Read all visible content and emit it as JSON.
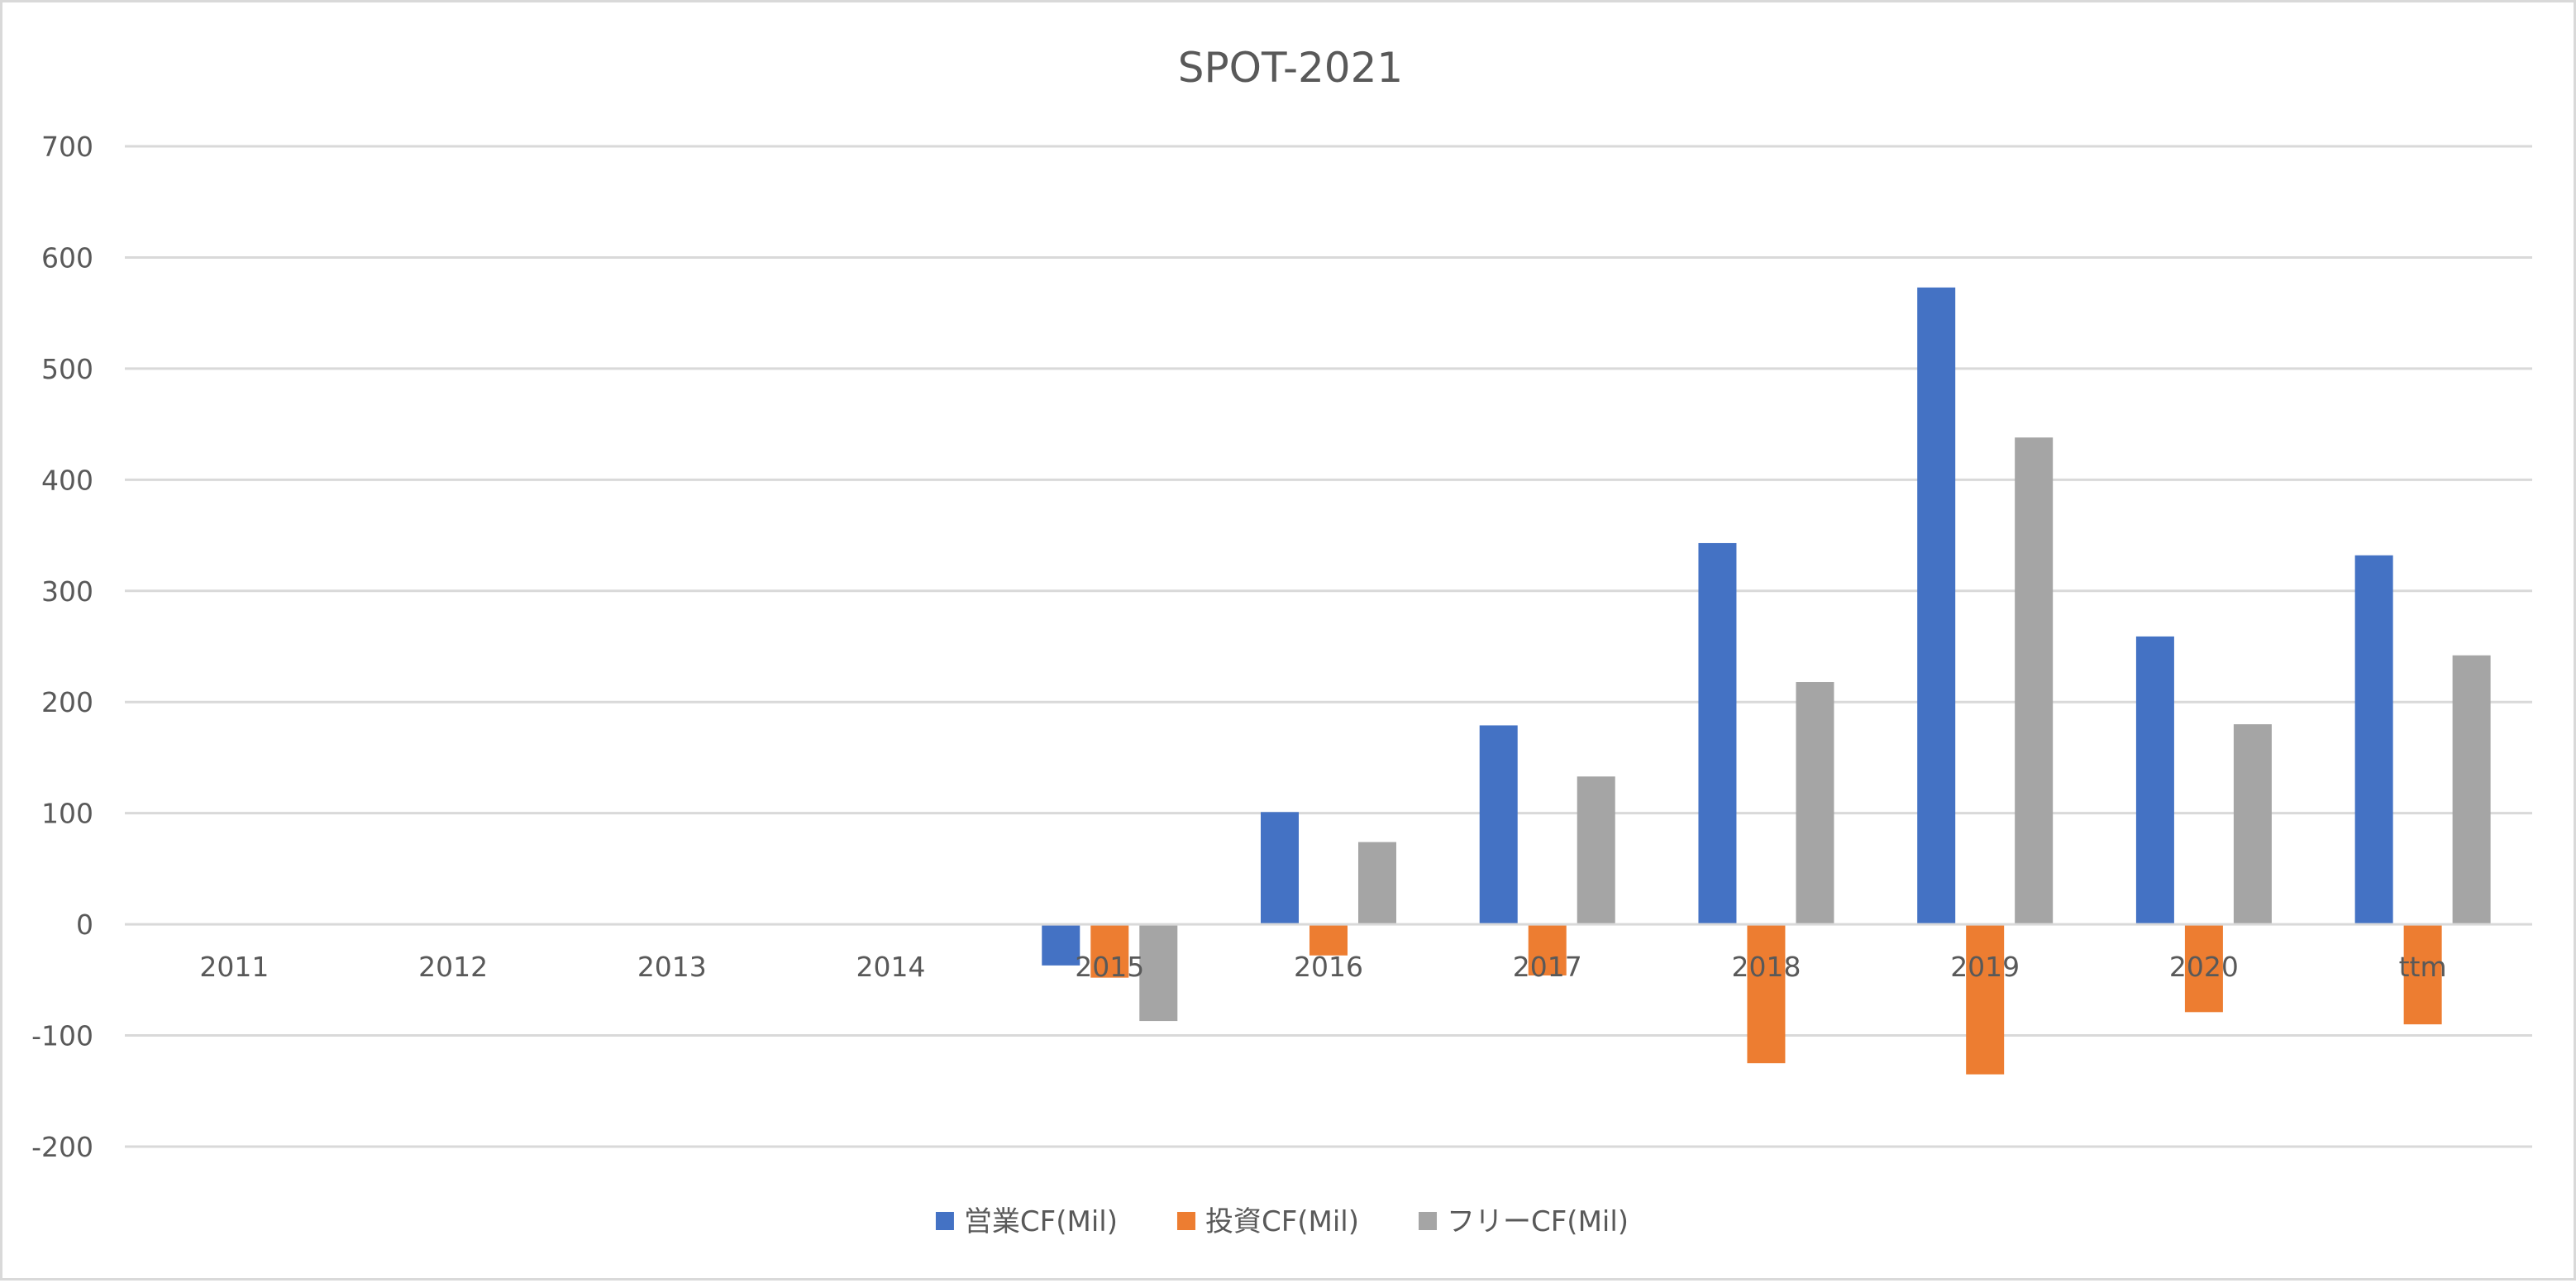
{
  "chart_data": {
    "type": "bar",
    "title": "SPOT-2021",
    "xlabel": "",
    "ylabel": "",
    "categories": [
      "2011",
      "2012",
      "2013",
      "2014",
      "2015",
      "2016",
      "2017",
      "2018",
      "2019",
      "2020",
      "ttm"
    ],
    "series": [
      {
        "name": "営業CF(Mil)",
        "color": "#4472C4",
        "values": [
          null,
          null,
          null,
          null,
          -37,
          101,
          179,
          343,
          573,
          259,
          332
        ]
      },
      {
        "name": "投資CF(Mil)",
        "color": "#ED7D31",
        "values": [
          null,
          null,
          null,
          null,
          -48,
          -28,
          -46,
          -125,
          -135,
          -79,
          -90
        ]
      },
      {
        "name": "フリーCF(Mil)",
        "color": "#A5A5A5",
        "values": [
          null,
          null,
          null,
          null,
          -87,
          74,
          133,
          218,
          438,
          180,
          242
        ]
      }
    ],
    "ylim": [
      -200,
      700
    ],
    "yticks": [
      -200,
      -100,
      0,
      100,
      200,
      300,
      400,
      500,
      600,
      700
    ],
    "grid": true,
    "legend_position": "bottom"
  }
}
